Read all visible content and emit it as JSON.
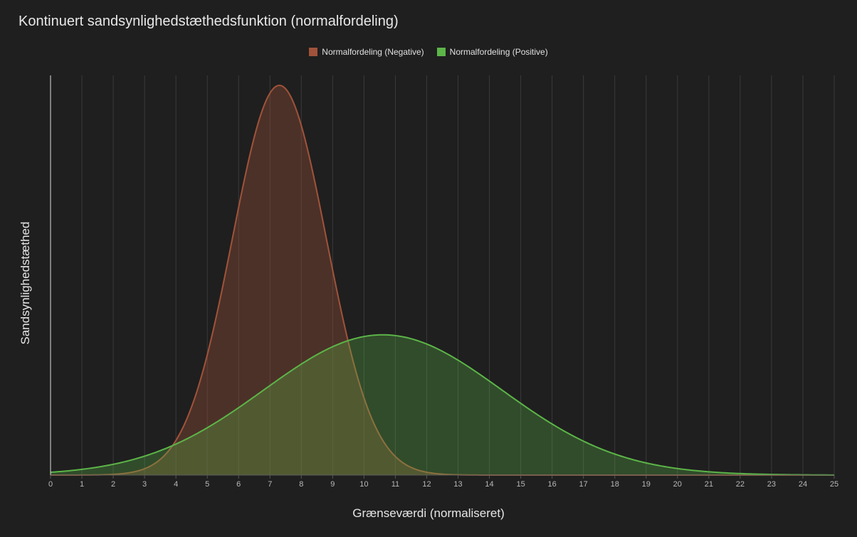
{
  "chart_data": {
    "type": "area",
    "title": "Kontinuert sandsynlighedstæthedsfunktion (normalfordeling)",
    "xlabel": "Grænseværdi (normaliseret)",
    "ylabel": "Sandsynlighedstæthed",
    "xlim": [
      0,
      25
    ],
    "x_ticks": [
      "0",
      "1",
      "2",
      "3",
      "4",
      "5",
      "6",
      "7",
      "8",
      "9",
      "10",
      "11",
      "12",
      "13",
      "14",
      "15",
      "16",
      "17",
      "18",
      "19",
      "20",
      "21",
      "22",
      "23",
      "24",
      "25"
    ],
    "grid": "vertical",
    "legend_position": "top-center",
    "series": [
      {
        "name": "Normalfordeling (Negative)",
        "color": "#a0533a",
        "fill": "rgba(160,83,58,0.35)",
        "distribution": "normal",
        "mean": 7.3,
        "std": 1.5,
        "peak_ratio": 1.0
      },
      {
        "name": "Normalfordeling (Positive)",
        "color": "#5cb548",
        "fill": "rgba(92,181,72,0.30)",
        "distribution": "normal",
        "mean": 10.6,
        "std": 3.8,
        "peak_ratio": 0.36
      }
    ]
  }
}
